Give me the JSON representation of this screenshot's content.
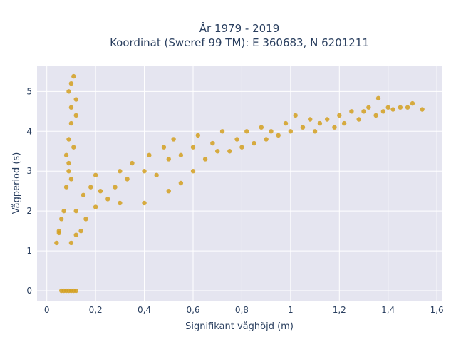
{
  "chart_data": {
    "type": "scatter",
    "title_lines": [
      "År 1979 - 2019",
      "Koordinat (Sweref 99 TM): E 360683, N 6201211"
    ],
    "xlabel": "Signifikant våghöjd (m)",
    "ylabel": "Vågperiod (s)",
    "xlim": [
      -0.04,
      1.62
    ],
    "ylim": [
      -0.25,
      5.65
    ],
    "x_ticks": [
      0,
      0.2,
      0.4,
      0.6,
      0.8,
      1,
      1.2,
      1.4,
      1.6
    ],
    "x_tick_labels": [
      "0",
      "0,2",
      "0,4",
      "0,6",
      "0,8",
      "1",
      "1,2",
      "1,4",
      "1,6"
    ],
    "y_ticks": [
      0,
      1,
      2,
      3,
      4,
      5
    ],
    "y_tick_labels": [
      "0",
      "1",
      "2",
      "3",
      "4",
      "5"
    ],
    "grid": true,
    "marker_color": "#D4A020",
    "background_color": "#E5E5F0",
    "series": [
      {
        "points": [
          [
            0.06,
            0
          ],
          [
            0.07,
            0
          ],
          [
            0.08,
            0
          ],
          [
            0.09,
            0
          ],
          [
            0.1,
            0
          ],
          [
            0.11,
            0
          ],
          [
            0.12,
            0
          ],
          [
            0.05,
            1.5
          ],
          [
            0.04,
            1.2
          ],
          [
            0.06,
            1.8
          ],
          [
            0.05,
            1.45
          ],
          [
            0.07,
            2.0
          ],
          [
            0.08,
            2.6
          ],
          [
            0.09,
            3.0
          ],
          [
            0.08,
            3.4
          ],
          [
            0.09,
            3.8
          ],
          [
            0.1,
            4.2
          ],
          [
            0.1,
            4.6
          ],
          [
            0.09,
            5.0
          ],
          [
            0.1,
            5.2
          ],
          [
            0.11,
            5.38
          ],
          [
            0.12,
            4.8
          ],
          [
            0.11,
            3.6
          ],
          [
            0.12,
            4.4
          ],
          [
            0.1,
            2.8
          ],
          [
            0.09,
            3.2
          ],
          [
            0.1,
            1.2
          ],
          [
            0.12,
            1.4
          ],
          [
            0.14,
            1.5
          ],
          [
            0.16,
            1.8
          ],
          [
            0.12,
            2.0
          ],
          [
            0.15,
            2.4
          ],
          [
            0.18,
            2.6
          ],
          [
            0.2,
            2.1
          ],
          [
            0.22,
            2.5
          ],
          [
            0.2,
            2.9
          ],
          [
            0.25,
            2.3
          ],
          [
            0.28,
            2.6
          ],
          [
            0.3,
            2.2
          ],
          [
            0.3,
            3.0
          ],
          [
            0.33,
            2.8
          ],
          [
            0.35,
            3.2
          ],
          [
            0.4,
            2.2
          ],
          [
            0.4,
            3.0
          ],
          [
            0.42,
            3.4
          ],
          [
            0.45,
            2.9
          ],
          [
            0.48,
            3.6
          ],
          [
            0.5,
            2.5
          ],
          [
            0.5,
            3.3
          ],
          [
            0.52,
            3.8
          ],
          [
            0.55,
            2.7
          ],
          [
            0.55,
            3.4
          ],
          [
            0.6,
            3.6
          ],
          [
            0.6,
            3.0
          ],
          [
            0.62,
            3.9
          ],
          [
            0.65,
            3.3
          ],
          [
            0.68,
            3.7
          ],
          [
            0.7,
            3.5
          ],
          [
            0.72,
            4.0
          ],
          [
            0.75,
            3.5
          ],
          [
            0.78,
            3.8
          ],
          [
            0.8,
            3.6
          ],
          [
            0.82,
            4.0
          ],
          [
            0.85,
            3.7
          ],
          [
            0.88,
            4.1
          ],
          [
            0.9,
            3.8
          ],
          [
            0.92,
            4.0
          ],
          [
            0.95,
            3.9
          ],
          [
            0.98,
            4.2
          ],
          [
            1.0,
            4.0
          ],
          [
            1.02,
            4.4
          ],
          [
            1.05,
            4.1
          ],
          [
            1.08,
            4.3
          ],
          [
            1.1,
            4.0
          ],
          [
            1.12,
            4.2
          ],
          [
            1.15,
            4.3
          ],
          [
            1.18,
            4.1
          ],
          [
            1.2,
            4.4
          ],
          [
            1.22,
            4.2
          ],
          [
            1.25,
            4.5
          ],
          [
            1.28,
            4.3
          ],
          [
            1.3,
            4.5
          ],
          [
            1.32,
            4.6
          ],
          [
            1.35,
            4.4
          ],
          [
            1.36,
            4.83
          ],
          [
            1.38,
            4.5
          ],
          [
            1.4,
            4.6
          ],
          [
            1.42,
            4.55
          ],
          [
            1.45,
            4.6
          ],
          [
            1.48,
            4.6
          ],
          [
            1.5,
            4.7
          ],
          [
            1.54,
            4.55
          ]
        ]
      }
    ]
  }
}
